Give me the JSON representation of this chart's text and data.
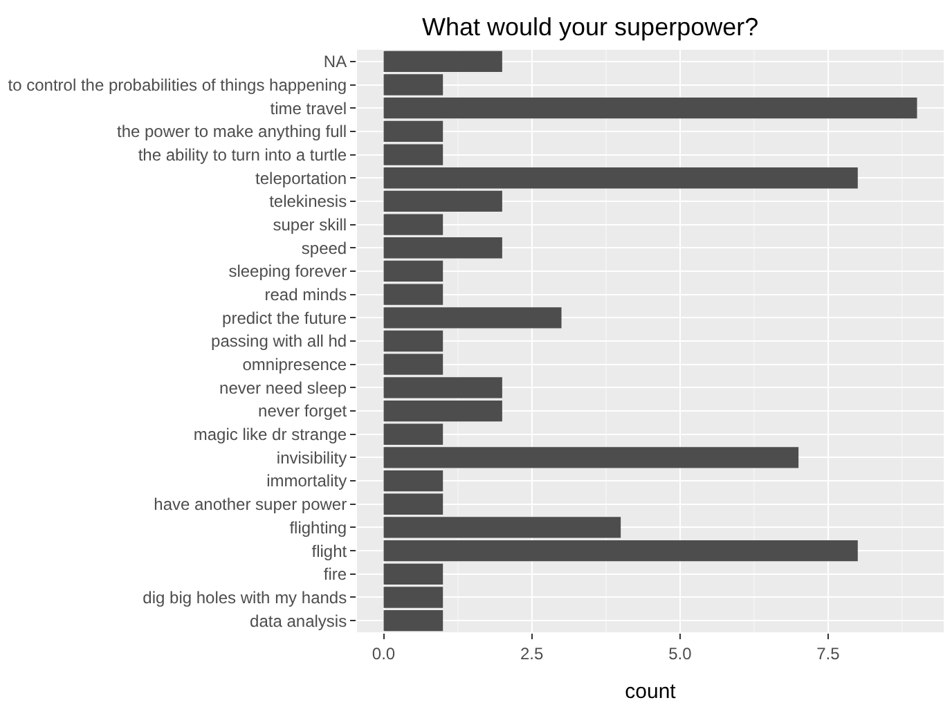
{
  "chart_data": {
    "type": "bar",
    "orientation": "horizontal",
    "title": "What would your superpower?",
    "xlabel": "count",
    "categories": [
      "NA",
      "to control the probabilities of things happening",
      "time travel",
      "the power to make anything full",
      "the ability to turn into a turtle",
      "teleportation",
      "telekinesis",
      "super skill",
      "speed",
      "sleeping forever",
      "read minds",
      "predict the future",
      "passing with all hd",
      "omnipresence",
      "never need sleep",
      "never forget",
      "magic like dr strange",
      "invisibility",
      "immortality",
      "have another super power",
      "flighting",
      "flight",
      "fire",
      "dig big holes with my hands",
      "data analysis"
    ],
    "values": [
      2,
      1,
      9,
      1,
      1,
      8,
      2,
      1,
      2,
      1,
      1,
      3,
      1,
      1,
      2,
      2,
      1,
      7,
      1,
      1,
      4,
      8,
      1,
      1,
      1
    ],
    "color": "#4d4d4d",
    "xlim": [
      -0.45,
      9.45
    ],
    "xticks": [
      {
        "value": 0,
        "label": "0.0"
      },
      {
        "value": 2.5,
        "label": "2.5"
      },
      {
        "value": 5,
        "label": "5.0"
      },
      {
        "value": 7.5,
        "label": "7.5"
      }
    ],
    "grid": true
  }
}
